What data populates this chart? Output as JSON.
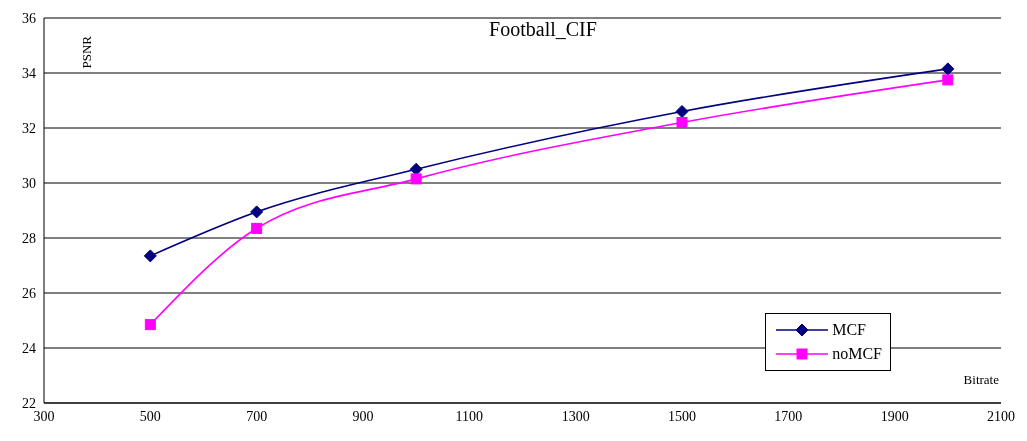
{
  "chart_data": {
    "type": "line",
    "title": "Football_CIF",
    "xlabel": "Bitrate",
    "ylabel": "PSNR",
    "x": [
      500,
      700,
      1000,
      1500,
      2000
    ],
    "series": [
      {
        "name": "MCF",
        "color": "#000080",
        "marker": "diamond",
        "values": [
          27.35,
          28.95,
          30.5,
          32.6,
          34.15
        ]
      },
      {
        "name": "noMCF",
        "color": "#ff00ff",
        "marker": "square",
        "values": [
          24.85,
          28.35,
          30.15,
          32.2,
          33.75
        ]
      }
    ],
    "xlim": [
      300,
      2100
    ],
    "xticks": [
      300,
      500,
      700,
      900,
      1100,
      1300,
      1500,
      1700,
      1900,
      2100
    ],
    "ylim": [
      22,
      36
    ],
    "yticks": [
      22,
      24,
      26,
      28,
      30,
      32,
      34,
      36
    ],
    "grid": "y",
    "legend": "bottom right",
    "line_style": "solid"
  }
}
